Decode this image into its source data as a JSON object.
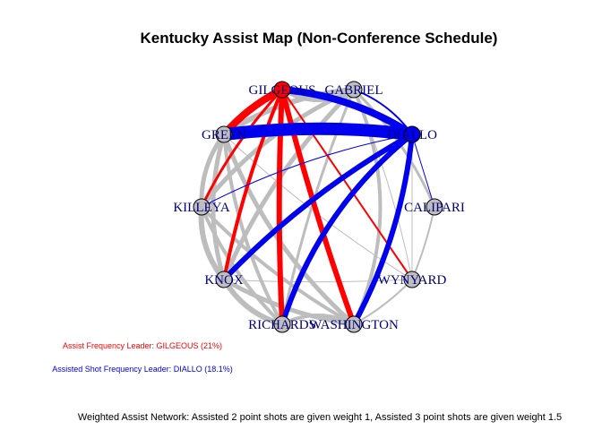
{
  "title": "Kentucky Assist Map (Non-Conference Schedule)",
  "colors": {
    "gray_edge": "#bdbdbd",
    "red_edge": "#ff0000",
    "blue_edge": "#0000ee",
    "node_fill": "#bebebe",
    "label": "#000080"
  },
  "nodes": [
    {
      "id": "GILGEOUS",
      "label": "GILGEOUS",
      "fill": "#ff0000"
    },
    {
      "id": "GABRIEL",
      "label": "GABRIEL",
      "fill": "#bebebe"
    },
    {
      "id": "DIALLO",
      "label": "DIALLO",
      "fill": "#0000ee"
    },
    {
      "id": "CALIPARI",
      "label": "CALIPARI",
      "fill": "#bebebe"
    },
    {
      "id": "WYNYARD",
      "label": "WYNYARD",
      "fill": "#bebebe"
    },
    {
      "id": "WASHINGTON",
      "label": "WASHINGTON",
      "fill": "#bebebe"
    },
    {
      "id": "RICHARDS",
      "label": "RICHARDS",
      "fill": "#bebebe"
    },
    {
      "id": "KNOX",
      "label": "KNOX",
      "fill": "#bebebe"
    },
    {
      "id": "KILLEYA",
      "label": "KILLEYA",
      "fill": "#bebebe"
    },
    {
      "id": "GREEN",
      "label": "GREEN",
      "fill": "#bebebe"
    }
  ],
  "edges": [
    {
      "from": "GREEN",
      "to": "DIALLO",
      "weight": 14,
      "color": "blue",
      "curve": 0.12
    },
    {
      "from": "GILGEOUS",
      "to": "DIALLO",
      "weight": 8,
      "color": "blue",
      "curve": 0.25
    },
    {
      "from": "GABRIEL",
      "to": "DIALLO",
      "weight": 2,
      "color": "blue",
      "curve": 0.3
    },
    {
      "from": "KNOX",
      "to": "DIALLO",
      "weight": 6,
      "color": "blue",
      "curve": 0.15
    },
    {
      "from": "RICHARDS",
      "to": "DIALLO",
      "weight": 6,
      "color": "blue",
      "curve": -0.3
    },
    {
      "from": "WASHINGTON",
      "to": "DIALLO",
      "weight": 6,
      "color": "blue",
      "curve": 0.2
    },
    {
      "from": "KILLEYA",
      "to": "DIALLO",
      "weight": 1,
      "color": "blue",
      "curve": 0.15
    },
    {
      "from": "CALIPARI",
      "to": "DIALLO",
      "weight": 1,
      "color": "blue",
      "curve": 0.0
    },
    {
      "from": "GILGEOUS",
      "to": "GREEN",
      "weight": 8,
      "color": "red",
      "curve": 0.2
    },
    {
      "from": "GILGEOUS",
      "to": "RICHARDS",
      "weight": 6,
      "color": "red",
      "curve": 0.05
    },
    {
      "from": "GILGEOUS",
      "to": "WASHINGTON",
      "weight": 6,
      "color": "red",
      "curve": 0.05
    },
    {
      "from": "GILGEOUS",
      "to": "KNOX",
      "weight": 4,
      "color": "red",
      "curve": 0.1
    },
    {
      "from": "GILGEOUS",
      "to": "KILLEYA",
      "weight": 3,
      "color": "red",
      "curve": 0.15
    },
    {
      "from": "GILGEOUS",
      "to": "WYNYARD",
      "weight": 2,
      "color": "red",
      "curve": 0.0
    },
    {
      "from": "GILGEOUS",
      "to": "GABRIEL",
      "weight": 4,
      "color": "gray",
      "curve": -0.6
    },
    {
      "from": "GREEN",
      "to": "GABRIEL",
      "weight": 6,
      "color": "gray",
      "curve": 0.25
    },
    {
      "from": "GREEN",
      "to": "KILLEYA",
      "weight": 5,
      "color": "gray",
      "curve": 0.35
    },
    {
      "from": "GREEN",
      "to": "KNOX",
      "weight": 5,
      "color": "gray",
      "curve": 0.3
    },
    {
      "from": "GREEN",
      "to": "RICHARDS",
      "weight": 4,
      "color": "gray",
      "curve": 0.2
    },
    {
      "from": "GREEN",
      "to": "WASHINGTON",
      "weight": 5,
      "color": "gray",
      "curve": 0.25
    },
    {
      "from": "GREEN",
      "to": "WYNYARD",
      "weight": 1,
      "color": "gray",
      "curve": 0.1
    },
    {
      "from": "KILLEYA",
      "to": "KNOX",
      "weight": 6,
      "color": "gray",
      "curve": 0.4
    },
    {
      "from": "KILLEYA",
      "to": "RICHARDS",
      "weight": 4,
      "color": "gray",
      "curve": 0.2
    },
    {
      "from": "KILLEYA",
      "to": "WASHINGTON",
      "weight": 4,
      "color": "gray",
      "curve": 0.15
    },
    {
      "from": "KILLEYA",
      "to": "GABRIEL",
      "weight": 5,
      "color": "gray",
      "curve": 0.25
    },
    {
      "from": "KNOX",
      "to": "RICHARDS",
      "weight": 6,
      "color": "gray",
      "curve": 0.4
    },
    {
      "from": "KNOX",
      "to": "WASHINGTON",
      "weight": 5,
      "color": "gray",
      "curve": 0.2
    },
    {
      "from": "KNOX",
      "to": "GABRIEL",
      "weight": 5,
      "color": "gray",
      "curve": 0.2
    },
    {
      "from": "RICHARDS",
      "to": "WASHINGTON",
      "weight": 4,
      "color": "gray",
      "curve": -0.5
    },
    {
      "from": "RICHARDS",
      "to": "GABRIEL",
      "weight": 3,
      "color": "gray",
      "curve": 0.1
    },
    {
      "from": "WASHINGTON",
      "to": "GABRIEL",
      "weight": 4,
      "color": "gray",
      "curve": 0.45
    },
    {
      "from": "GABRIEL",
      "to": "CALIPARI",
      "weight": 3,
      "color": "gray",
      "curve": 0.2
    },
    {
      "from": "GABRIEL",
      "to": "WYNYARD",
      "weight": 1,
      "color": "gray",
      "curve": 0.1
    },
    {
      "from": "WASHINGTON",
      "to": "WYNYARD",
      "weight": 2,
      "color": "gray",
      "curve": 0.15
    },
    {
      "from": "CALIPARI",
      "to": "WYNYARD",
      "weight": 2,
      "color": "gray",
      "curve": 0.1
    },
    {
      "from": "DIALLO",
      "to": "WYNYARD",
      "weight": 1,
      "color": "gray",
      "curve": 0.0
    },
    {
      "from": "KNOX",
      "to": "WYNYARD",
      "weight": 1,
      "color": "gray",
      "curve": 0.05
    }
  ],
  "notes": {
    "assist_leader": "Assist Frequency Leader: GILGEOUS (21%)",
    "shot_leader": "Assisted Shot Frequency Leader: DIALLO (18.1%)",
    "caption": "Weighted Assist Network: Assisted 2 point shots are given weight 1, Assisted 3 point shots are given weight 1.5"
  }
}
